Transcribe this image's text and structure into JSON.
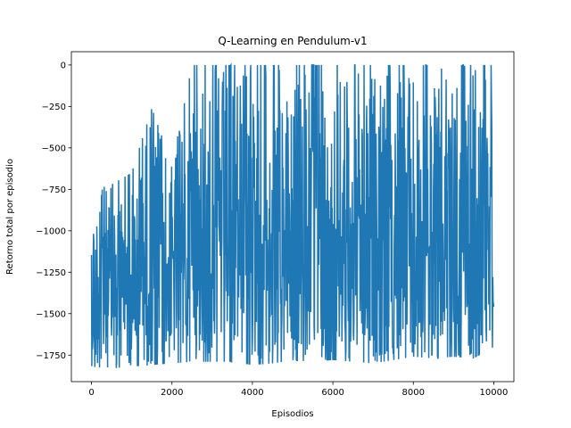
{
  "chart_data": {
    "type": "line",
    "title": "Q-Learning en Pendulum-v1",
    "xlabel": "Episodios",
    "ylabel": "Retorno total por episodio",
    "xlim": [
      -500,
      10500
    ],
    "ylim": [
      -1910,
      80
    ],
    "xticks": [
      0,
      2000,
      4000,
      6000,
      8000,
      10000
    ],
    "xtick_labels": [
      "0",
      "2000",
      "4000",
      "6000",
      "8000",
      "10000"
    ],
    "yticks": [
      0,
      -250,
      -500,
      -750,
      -1000,
      -1250,
      -1500,
      -1750
    ],
    "ytick_labels": [
      "0",
      "−250",
      "−500",
      "−750",
      "−1000",
      "−1250",
      "−1500",
      "−1750"
    ],
    "grid": false,
    "legend": "none",
    "color": "#1f77b4",
    "series": [
      {
        "x": [
          0,
          500,
          1000,
          1500,
          2000,
          2500,
          3000,
          3500,
          4000,
          4500,
          5000,
          5500,
          6000,
          6500,
          7000,
          7500,
          8000,
          8500,
          9000,
          9500,
          10000
        ],
        "y_max": [
          -760,
          -720,
          -650,
          -260,
          -600,
          0,
          0,
          0,
          0,
          0,
          0,
          0,
          0,
          0,
          0,
          0,
          0,
          0,
          0,
          0,
          0
        ],
        "y_min": [
          -1820,
          -1830,
          -1820,
          -1810,
          -1800,
          -1790,
          -1790,
          -1790,
          -1810,
          -1800,
          -1780,
          -1790,
          -1780,
          -1790,
          -1800,
          -1780,
          -1760,
          -1770,
          -1760,
          -1770,
          -1700
        ]
      }
    ]
  }
}
